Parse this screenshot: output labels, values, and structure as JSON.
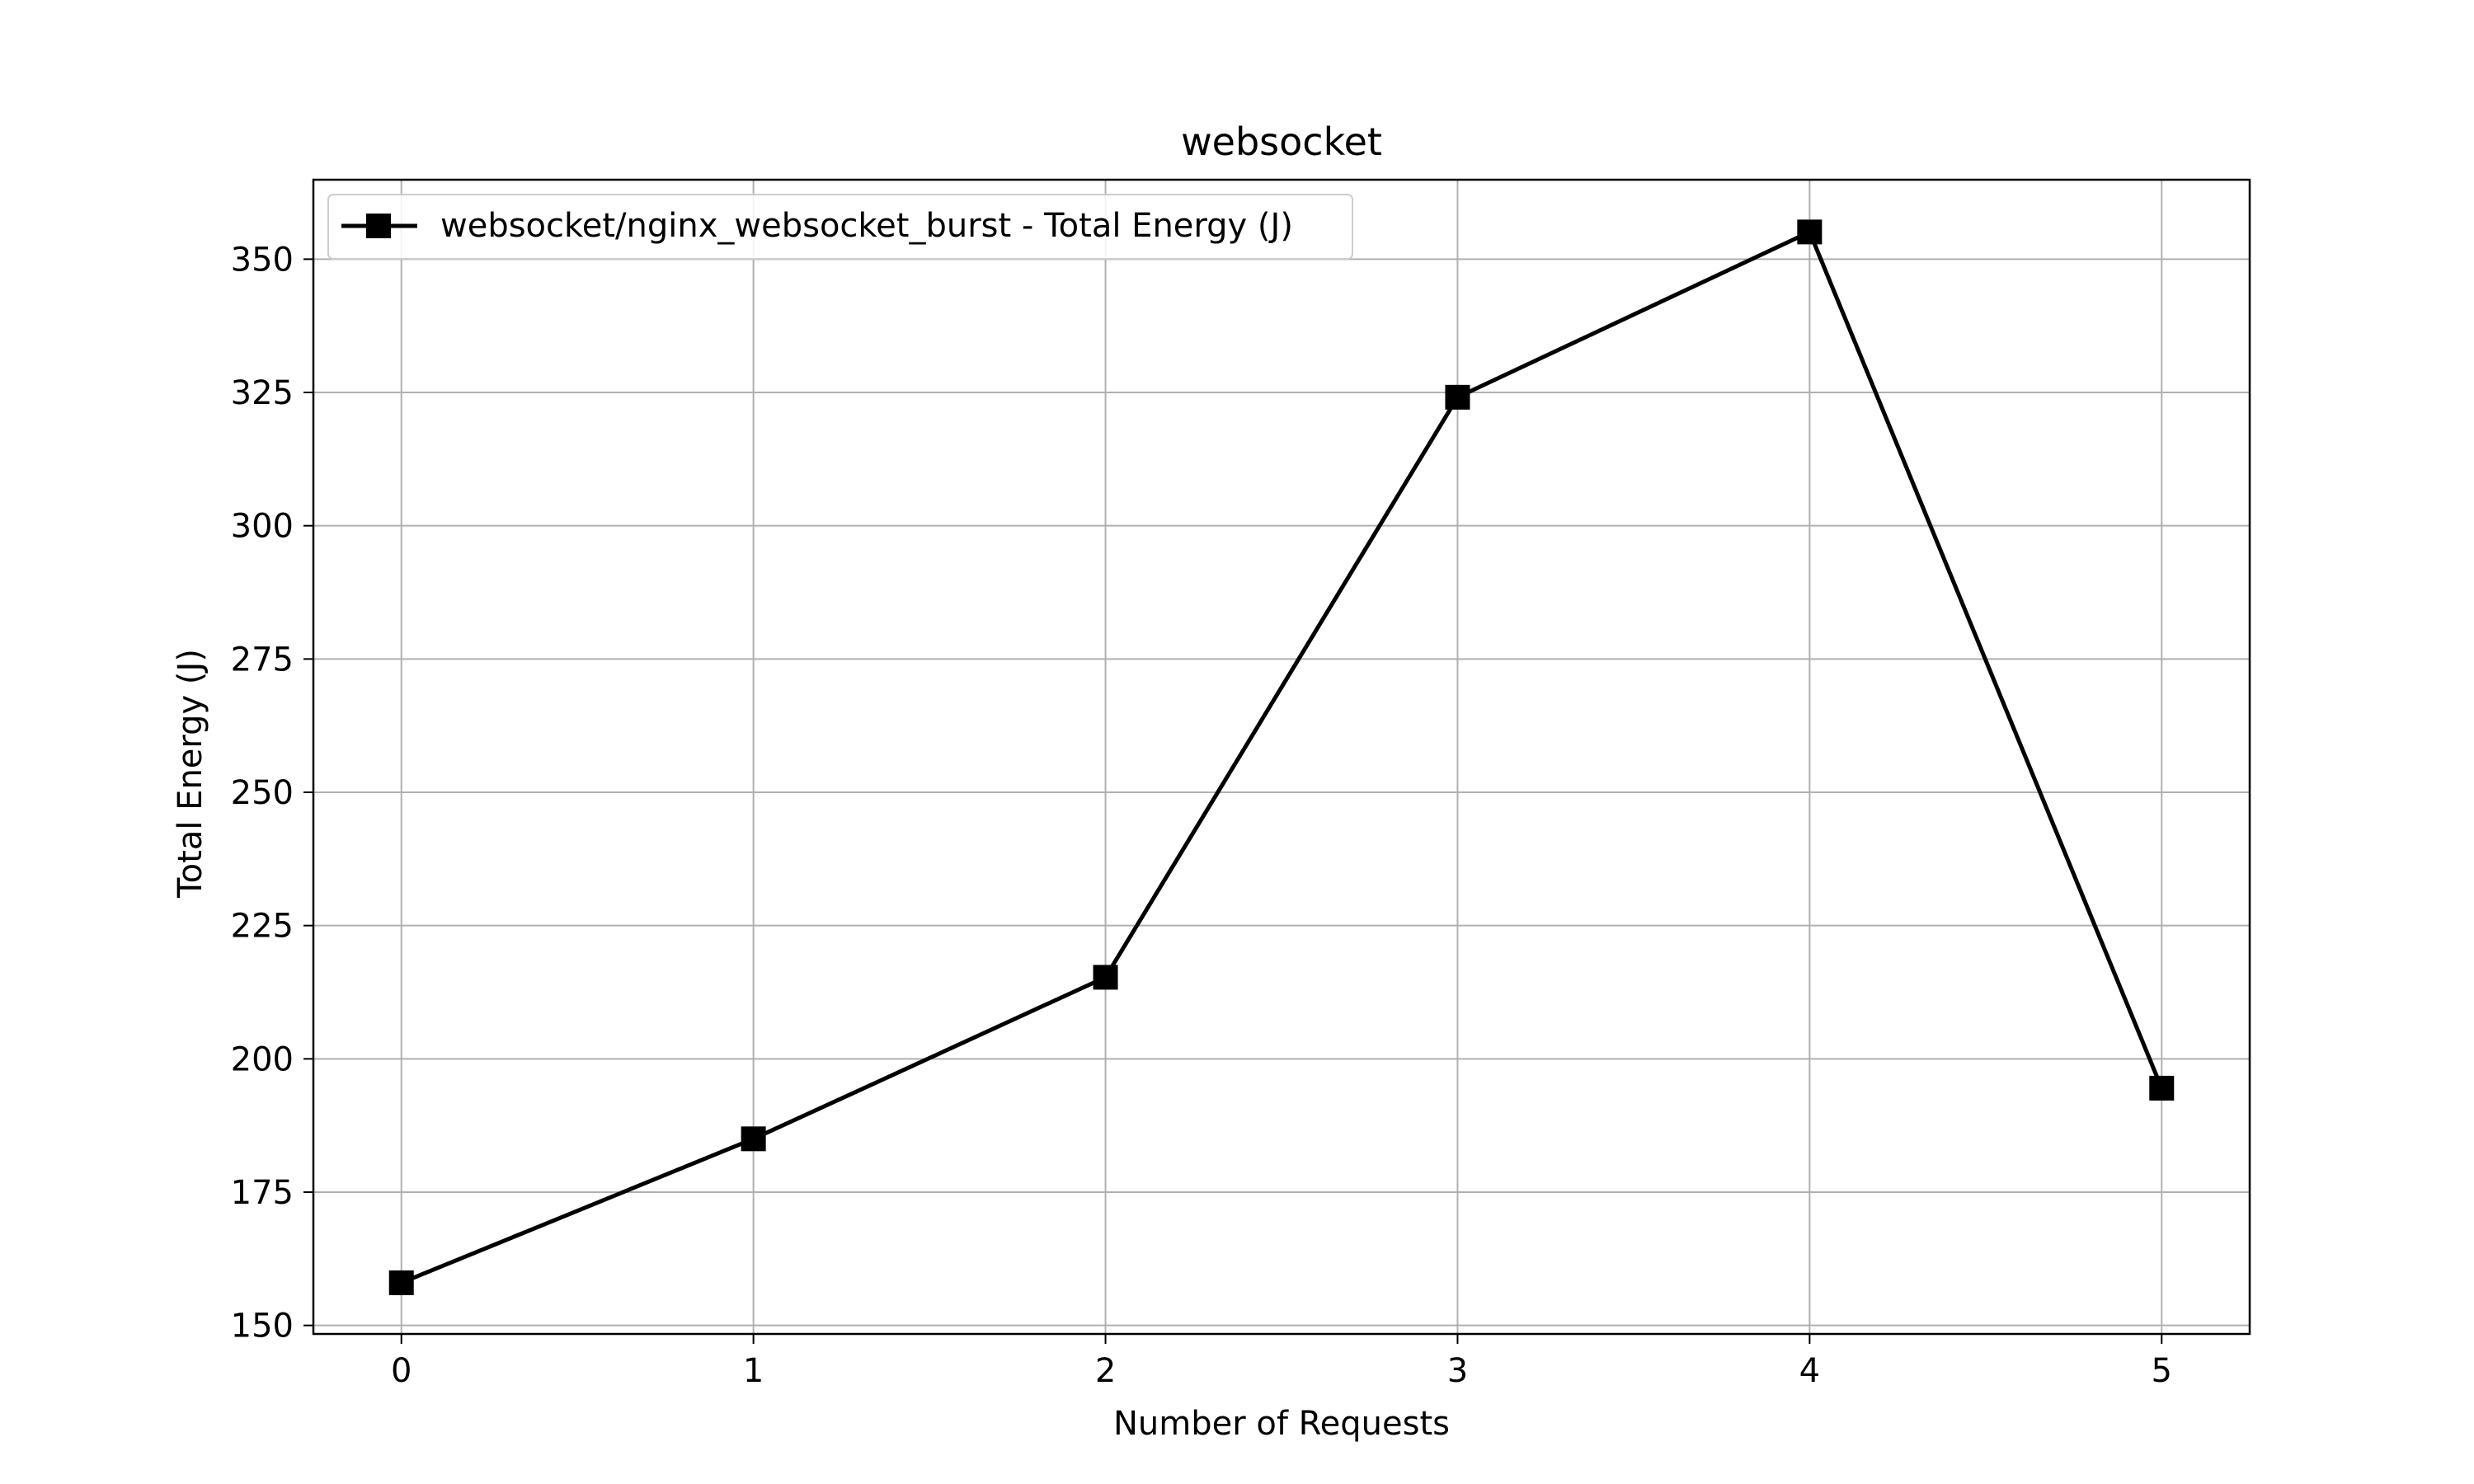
{
  "chart_data": {
    "type": "line",
    "title": "websocket",
    "xlabel": "Number of Requests",
    "ylabel": "Total Energy (J)",
    "x": [
      0,
      1,
      2,
      3,
      4,
      5
    ],
    "xticks": [
      0,
      1,
      2,
      3,
      4,
      5
    ],
    "yticks": [
      150,
      175,
      200,
      225,
      250,
      275,
      300,
      325,
      350
    ],
    "xlim": [
      -0.25,
      5.25
    ],
    "ylim": [
      148.4,
      364.9
    ],
    "grid": true,
    "legend_position": "upper-left",
    "series": [
      {
        "name": "websocket/nginx_websocket_burst - Total Energy (J)",
        "values": [
          158.0,
          185.0,
          215.3,
          324.1,
          355.1,
          194.5
        ],
        "color": "#000000",
        "marker": "square"
      }
    ]
  }
}
